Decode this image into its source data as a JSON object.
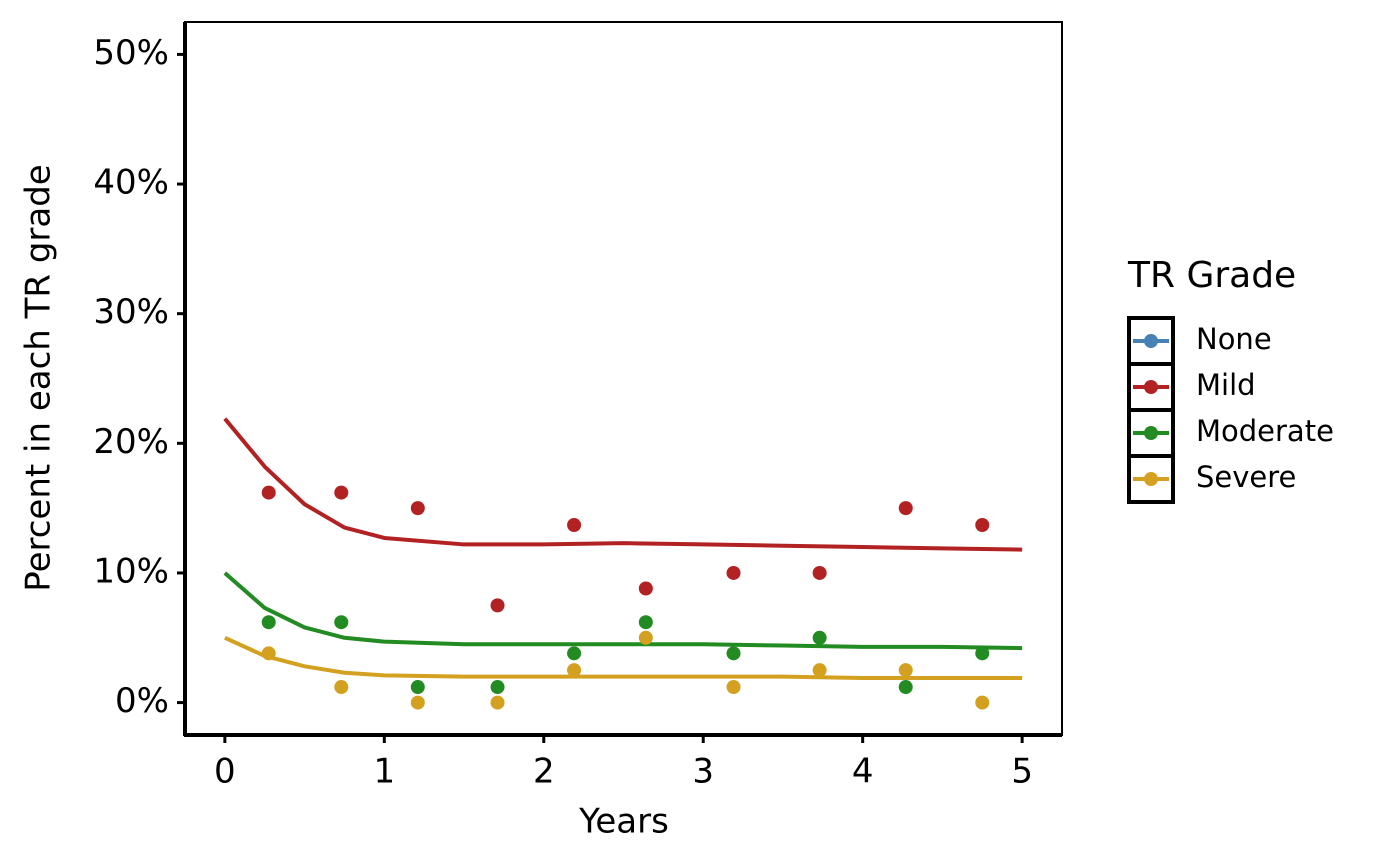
{
  "chart_data": {
    "type": "scatter",
    "x_label": "Years",
    "y_label": "Percent in each TR grade",
    "legend_title": "TR Grade",
    "legend_position": "right",
    "xlim": [
      -0.25,
      5.25
    ],
    "ylim": [
      -2.5,
      52.5
    ],
    "xticks": [
      0,
      1,
      2,
      3,
      4,
      5
    ],
    "yticks": [
      {
        "value": 0,
        "label": "0%"
      },
      {
        "value": 10,
        "label": "10%"
      },
      {
        "value": 20,
        "label": "20%"
      },
      {
        "value": 30,
        "label": "30%"
      },
      {
        "value": 40,
        "label": "40%"
      },
      {
        "value": 50,
        "label": "50%"
      }
    ],
    "x": [
      0.275,
      0.73,
      1.21,
      1.71,
      2.19,
      2.64,
      3.19,
      3.73,
      4.27,
      4.75
    ],
    "curve_x": [
      0,
      0.25,
      0.5,
      0.75,
      1,
      1.5,
      2,
      2.5,
      3,
      3.5,
      4,
      4.5,
      5
    ],
    "series": [
      {
        "name": "None",
        "color": "#4682b4",
        "values": [],
        "curve_values": []
      },
      {
        "name": "Mild",
        "color": "#b22222",
        "values": [
          16.2,
          16.2,
          15.0,
          7.5,
          13.7,
          8.8,
          10.0,
          10.0,
          15.0,
          13.7
        ],
        "curve_values": [
          21.9,
          18.2,
          15.3,
          13.5,
          12.7,
          12.2,
          12.2,
          12.3,
          12.2,
          12.1,
          12.0,
          11.9,
          11.8
        ]
      },
      {
        "name": "Moderate",
        "color": "#228b22",
        "values": [
          6.2,
          6.2,
          1.2,
          1.2,
          3.8,
          6.2,
          3.8,
          5.0,
          1.2,
          3.8
        ],
        "curve_values": [
          10.0,
          7.3,
          5.8,
          5.0,
          4.7,
          4.5,
          4.5,
          4.5,
          4.5,
          4.4,
          4.3,
          4.3,
          4.2
        ]
      },
      {
        "name": "Severe",
        "color": "#d4a020",
        "values": [
          3.8,
          1.2,
          0,
          0,
          2.5,
          5.0,
          1.2,
          2.5,
          2.5,
          0
        ],
        "curve_values": [
          5.0,
          3.6,
          2.8,
          2.3,
          2.1,
          2.0,
          2.0,
          2.0,
          2.0,
          2.0,
          1.9,
          1.9,
          1.9
        ]
      }
    ]
  }
}
